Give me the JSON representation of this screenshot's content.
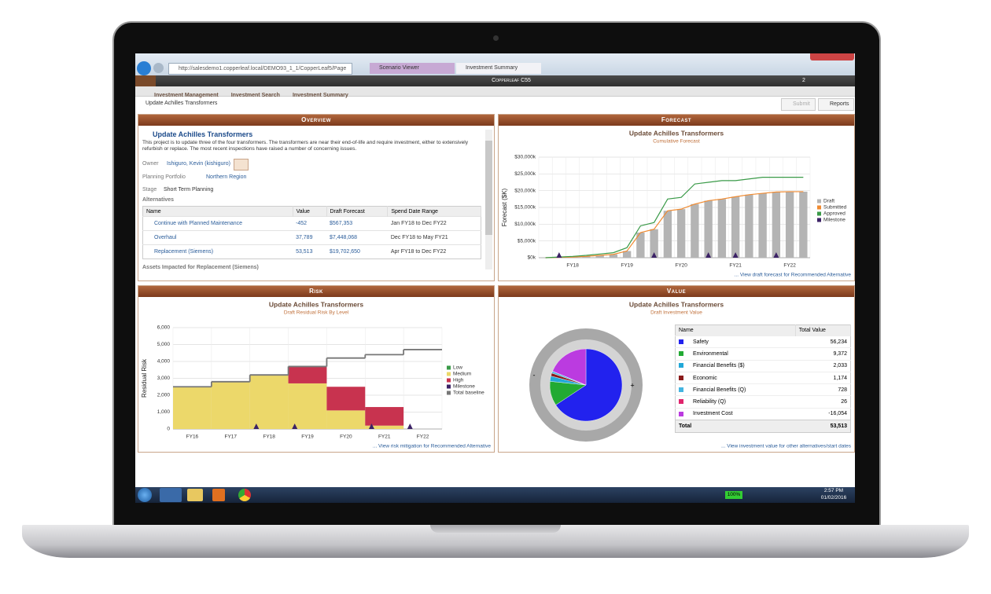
{
  "browser": {
    "url": "http://salesdemo1.copperleaf.local/DEMO93_1_1/CopperLeaf5/Page",
    "tabs": [
      "Scenario Viewer",
      "Investment Summary"
    ]
  },
  "app": {
    "title": "Copperleaf C55",
    "badge": "2"
  },
  "breadcrumbs": [
    "Investment Management",
    "Investment Search",
    "Investment Summary"
  ],
  "page_title": "Update Achilles Transformers",
  "buttons": [
    "Submit",
    "Reports"
  ],
  "overview": {
    "heading": "Overview",
    "title": "Update Achilles Transformers",
    "description": "This project is to update three of the four transformers. The transformers are near their end-of-life and require investment, either to extensively refurbish or replace. The most recent inspections have raised a number of concerning issues.",
    "owner_label": "Owner",
    "owner": "Ishiguro, Kevin (kishiguro)",
    "portfolio_label": "Planning Portfolio",
    "portfolio": "Northern Region",
    "stage_label": "Stage",
    "stage": "Short Term Planning",
    "alternatives_label": "Alternatives",
    "table": {
      "columns": [
        "Name",
        "Value",
        "Draft Forecast",
        "Spend Date Range"
      ],
      "rows": [
        [
          "Continue with Planned Maintenance",
          "-452",
          "$567,353",
          "Jan FY18 to Dec FY22"
        ],
        [
          "Overhaul",
          "37,789",
          "$7,448,068",
          "Dec FY18 to May FY21"
        ],
        [
          "Replacement (Siemens)",
          "53,513",
          "$19,702,650",
          "Apr FY18 to Dec FY22"
        ]
      ]
    },
    "assets_label": "Assets Impacted for Replacement (Siemens)"
  },
  "forecast": {
    "heading": "Forecast",
    "link": "... View draft forecast for Recommended Alternative",
    "chart": {
      "type": "bar",
      "title": "Update Achilles Transformers",
      "subtitle": "Cumulative Forecast",
      "y_label": "Forecast ($K)",
      "categories": [
        null,
        null,
        "FY18",
        null,
        null,
        null,
        "FY19",
        null,
        null,
        null,
        "FY20",
        null,
        null,
        null,
        "FY21",
        null,
        null,
        null,
        "FY22",
        null
      ],
      "ylim": [
        0,
        30000
      ],
      "yticks": [
        {
          "value": 0,
          "label": "$0k"
        },
        {
          "value": 5000,
          "label": "$5,000k"
        },
        {
          "value": 10000,
          "label": "$10,000k"
        },
        {
          "value": 15000,
          "label": "$15,000k"
        },
        {
          "value": 20000,
          "label": "$20,000k"
        },
        {
          "value": 25000,
          "label": "$25,000k"
        },
        {
          "value": 30000,
          "label": "$30,000k"
        }
      ],
      "grid": true,
      "series": [
        {
          "name": "Draft",
          "type": "bar",
          "color": "#b4b4b4",
          "values": [
            0,
            100,
            200,
            400,
            700,
            1000,
            2000,
            7500,
            8500,
            14000,
            14500,
            16000,
            17000,
            17500,
            18200,
            18800,
            19200,
            19600,
            19700,
            19700
          ]
        },
        {
          "name": "Submitted",
          "type": "line",
          "color": "#f08a30",
          "values": [
            0,
            100,
            200,
            400,
            700,
            1000,
            2000,
            7500,
            8500,
            14000,
            14500,
            16000,
            17000,
            17500,
            18200,
            18800,
            19200,
            19600,
            19700,
            19700
          ]
        },
        {
          "name": "Approved",
          "type": "line",
          "color": "#3a9a48",
          "values": [
            0,
            200,
            400,
            700,
            1100,
            1500,
            3000,
            9500,
            10500,
            17500,
            18000,
            22000,
            22500,
            23000,
            23000,
            23500,
            24000,
            24000,
            24000,
            24000
          ]
        },
        {
          "name": "Milestone",
          "type": "marker",
          "color": "#3c2266",
          "values": [
            null,
            0,
            null,
            null,
            null,
            null,
            null,
            null,
            0,
            null,
            null,
            null,
            0,
            null,
            0,
            null,
            null,
            0,
            null,
            null
          ]
        }
      ]
    }
  },
  "risk": {
    "heading": "Risk",
    "link": "... View risk mitigation for Recommended Alternative",
    "chart": {
      "type": "area",
      "title": "Update Achilles Transformers",
      "subtitle": "Draft Residual Risk By Level",
      "y_label": "Residual Risk",
      "categories": [
        "FY16",
        "FY17",
        "FY18",
        "FY19",
        "FY20",
        "FY21",
        "FY22"
      ],
      "ylim": [
        0,
        6000
      ],
      "yticks": [
        0,
        {
          "value": 1000,
          "label": "1,000"
        },
        {
          "value": 2000,
          "label": "2,000"
        },
        {
          "value": 3000,
          "label": "3,000"
        },
        {
          "value": 4000,
          "label": "4,000"
        },
        {
          "value": 5000,
          "label": "5,000"
        },
        {
          "value": 6000,
          "label": "6,000"
        }
      ],
      "grid": true,
      "series": [
        {
          "name": "Low",
          "type": "area",
          "color": "#3a9a48",
          "values": [
            0,
            0,
            0,
            0,
            0,
            0,
            0
          ]
        },
        {
          "name": "Medium",
          "type": "area",
          "color": "#ecd86a",
          "values": [
            2500,
            2800,
            3200,
            2700,
            1100,
            200,
            0
          ]
        },
        {
          "name": "High",
          "type": "area",
          "color": "#c8334f",
          "values": [
            0,
            0,
            0,
            1000,
            1400,
            1100,
            0
          ]
        },
        {
          "name": "Milestone",
          "type": "marker",
          "color": "#3c2266",
          "values": [
            null,
            null,
            0,
            0,
            null,
            0,
            0
          ]
        },
        {
          "name": "Total baseline",
          "type": "step",
          "color": "#777777",
          "values": [
            2500,
            2800,
            3200,
            3700,
            4200,
            4400,
            4700
          ]
        }
      ]
    }
  },
  "value": {
    "heading": "Value",
    "link": "... View investment value for other alternatives/start dates",
    "ring_labels": [
      "-",
      "+"
    ],
    "table_columns": [
      "Name",
      "Total Value"
    ],
    "total_label": "Total",
    "total": "53,513",
    "chart": {
      "type": "pie",
      "title": "Update Achilles Transformers",
      "subtitle": "Draft Investment Value",
      "categories": [
        "Safety",
        "Environmental",
        "Financial Benefits ($)",
        "Economic",
        "Financial Benefits (Q)",
        "Reliability (Q)",
        "Investment Cost"
      ],
      "values": [
        56234,
        9372,
        2033,
        1174,
        728,
        26,
        -16054
      ],
      "value_labels": [
        "56,234",
        "9,372",
        "2,033",
        "1,174",
        "728",
        "26",
        "-16,054"
      ],
      "colors": [
        "#2222ee",
        "#22aa33",
        "#22a8d8",
        "#8a1a1a",
        "#44b4e0",
        "#e0246c",
        "#bb3be0"
      ]
    }
  },
  "taskbar": {
    "battery": "100%",
    "time": "2:57 PM",
    "date": "01/02/2016"
  }
}
